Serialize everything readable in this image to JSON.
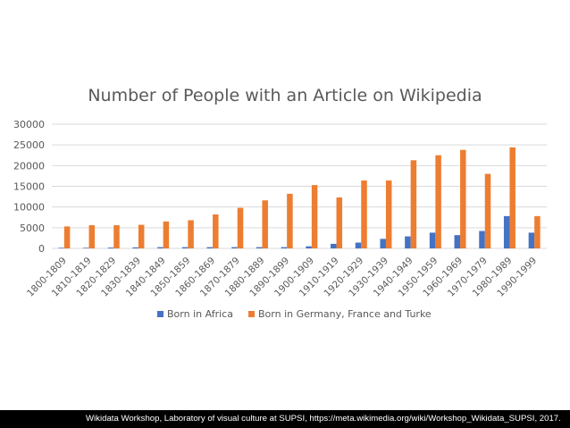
{
  "chart_data": {
    "type": "bar",
    "title": "Number of People with an Article on Wikipedia",
    "xlabel": "",
    "ylabel": "",
    "ylim": [
      0,
      30000
    ],
    "yticks": [
      0,
      5000,
      10000,
      15000,
      20000,
      25000,
      30000
    ],
    "grid": true,
    "legend_position": "bottom",
    "categories": [
      "1800-1809",
      "1810-1819",
      "1820-1829",
      "1830-1839",
      "1840-1849",
      "1850-1859",
      "1860-1869",
      "1870-1879",
      "1880-1889",
      "1890-1899",
      "1900-1909",
      "1910-1919",
      "1920-1929",
      "1930-1939",
      "1940-1949",
      "1950-1959",
      "1960-1969",
      "1970-1979",
      "1980-1989",
      "1990-1999"
    ],
    "series": [
      {
        "name": "Born in Africa",
        "color": "#4472c4",
        "values": [
          150,
          150,
          200,
          250,
          300,
          300,
          300,
          300,
          300,
          300,
          500,
          1100,
          1400,
          2300,
          2900,
          3800,
          3200,
          4200,
          7800,
          3800
        ]
      },
      {
        "name": "Born in Germany, France and Turke",
        "color": "#ed7d31",
        "values": [
          5300,
          5600,
          5600,
          5700,
          6500,
          6800,
          8200,
          9800,
          11600,
          13200,
          15300,
          12300,
          16400,
          16400,
          21300,
          22500,
          23800,
          18000,
          24400,
          7800
        ]
      }
    ]
  },
  "caption": "Wikidata Workshop, Laboratory of visual culture at SUPSI, https://meta.wikimedia.org/wiki/Workshop_Wikidata_SUPSI, 2017."
}
